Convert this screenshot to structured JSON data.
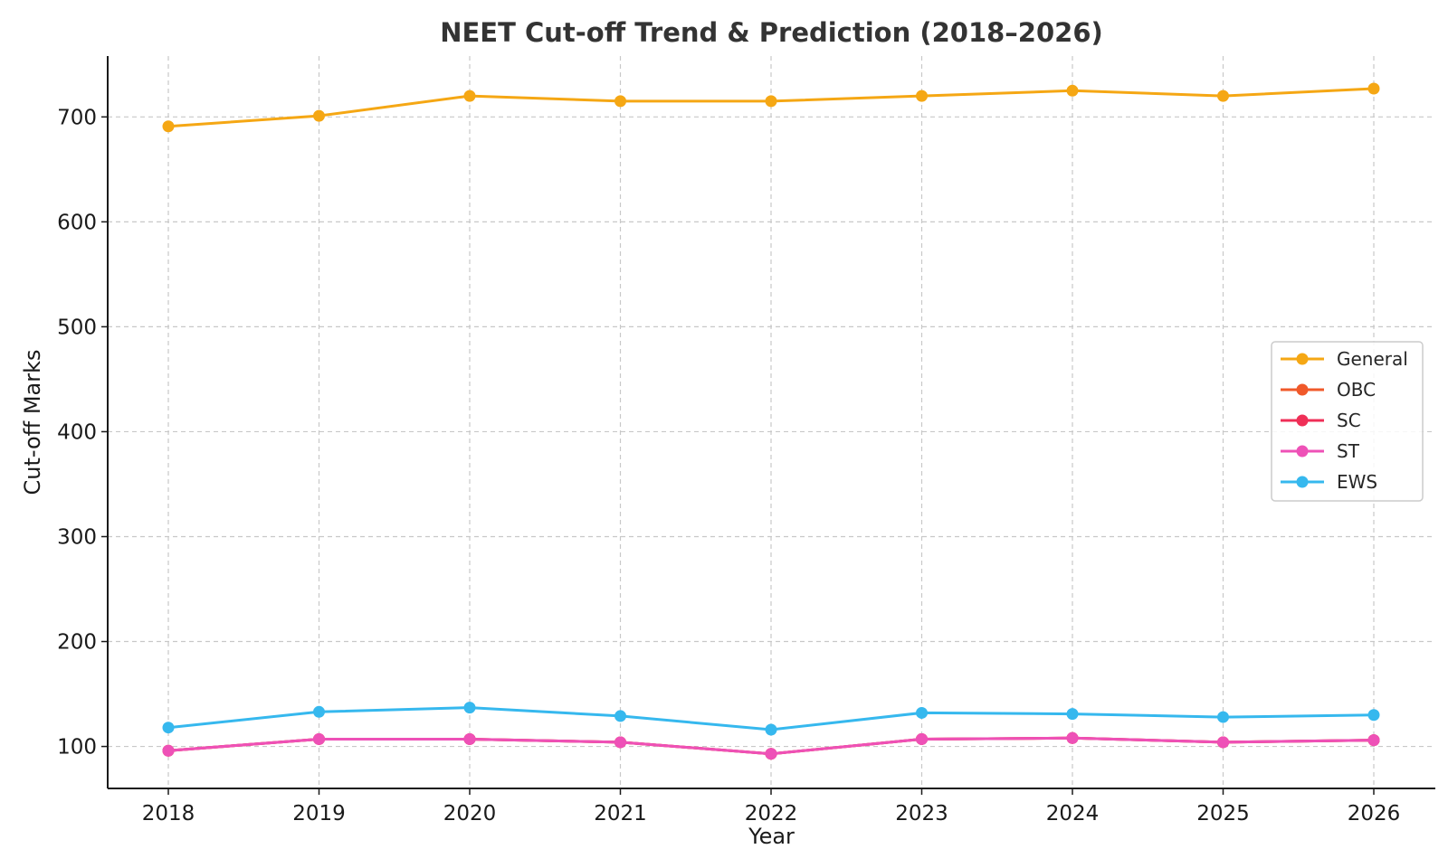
{
  "chart_data": {
    "type": "line",
    "title": "NEET Cut-off Trend & Prediction (2018–2026)",
    "xlabel": "Year",
    "ylabel": "Cut-off Marks",
    "categories": [
      "2018",
      "2019",
      "2020",
      "2021",
      "2022",
      "2023",
      "2024",
      "2025",
      "2026"
    ],
    "ylim": [
      60,
      758
    ],
    "yticks": [
      100,
      200,
      300,
      400,
      500,
      600,
      700
    ],
    "grid": true,
    "legend_position": "center-right",
    "series": [
      {
        "name": "General",
        "color": "#F5A714",
        "values": [
          691,
          701,
          720,
          715,
          715,
          720,
          725,
          720,
          727
        ]
      },
      {
        "name": "OBC",
        "color": "#F0592A",
        "values": [
          96,
          107,
          107,
          104,
          93,
          107,
          108,
          104,
          106
        ]
      },
      {
        "name": "SC",
        "color": "#EF2F57",
        "values": [
          96,
          107,
          107,
          104,
          93,
          107,
          108,
          104,
          106
        ]
      },
      {
        "name": "ST",
        "color": "#EE51B7",
        "values": [
          96,
          107,
          107,
          104,
          93,
          107,
          108,
          104,
          106
        ]
      },
      {
        "name": "EWS",
        "color": "#36B8EE",
        "values": [
          118,
          133,
          137,
          129,
          116,
          132,
          131,
          128,
          130
        ]
      }
    ]
  }
}
